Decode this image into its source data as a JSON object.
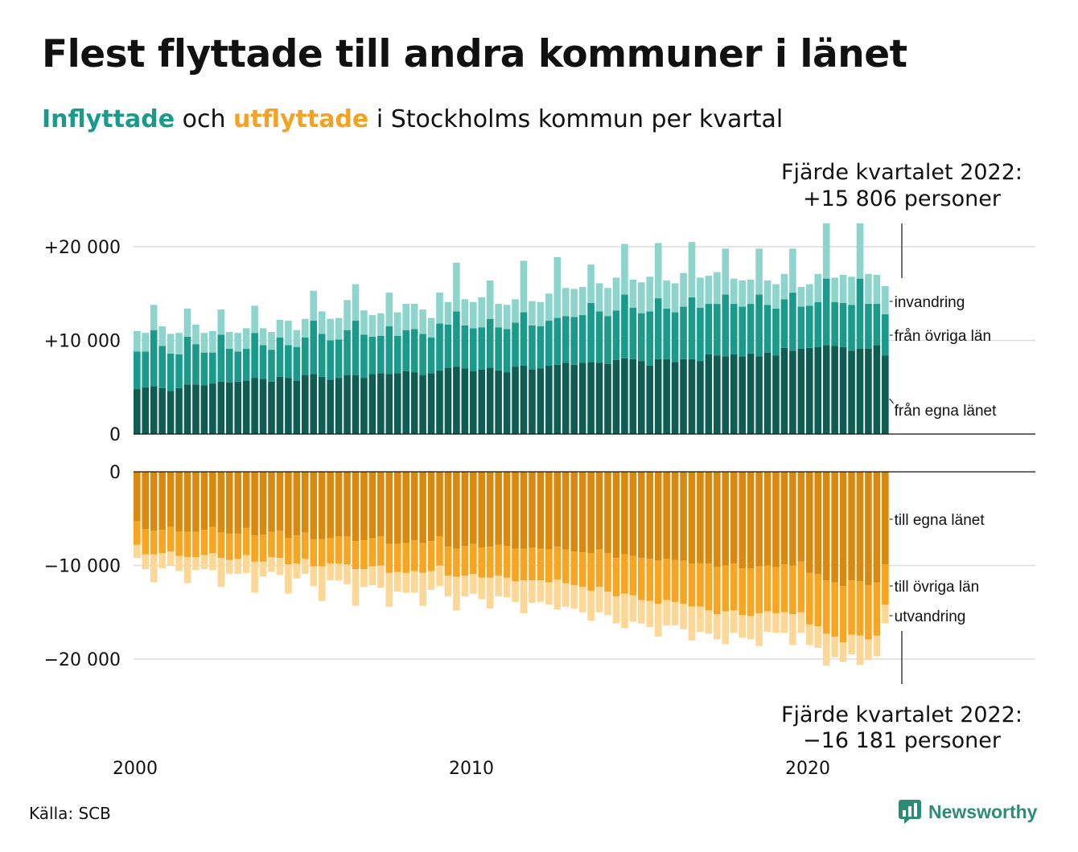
{
  "header": {
    "title": "Flest flyttade till andra kommuner i länet",
    "subtitle_in": "Inflyttade",
    "subtitle_and": "och",
    "subtitle_out": "utflyttade",
    "subtitle_rest": "i Stockholms kommun per kvartal"
  },
  "footer": {
    "source": "Källa: SCB",
    "logo": "Newsworthy"
  },
  "colors": {
    "in_own": "#0e5c52",
    "in_other": "#1a9a8a",
    "in_abroad": "#8dd5cc",
    "out_own": "#d98a0e",
    "out_other": "#f8a521",
    "out_abroad": "#fdd795"
  },
  "chart_data": {
    "type": "bar",
    "stacked": true,
    "grid": true,
    "x_ticks": [
      "2000",
      "2010",
      "2020"
    ],
    "y_ticks_in": [
      "+20 000",
      "+10 000",
      "0"
    ],
    "y_ticks_out": [
      "0",
      "−10 000",
      "−20 000"
    ],
    "ylim_in": [
      0,
      20000
    ],
    "ylim_out": [
      -20000,
      0
    ],
    "annotation_top": [
      "Fjärde kvartalet 2022:",
      "+15 806 personer"
    ],
    "annotation_bottom": [
      "Fjärde kvartalet 2022:",
      "−16 181 personer"
    ],
    "series_in": [
      {
        "name": "från egna länet",
        "values": [
          4800,
          5000,
          5100,
          4900,
          4600,
          4900,
          5300,
          5300,
          5200,
          5400,
          5600,
          5500,
          5600,
          5700,
          6000,
          5900,
          5600,
          6100,
          6000,
          5700,
          6300,
          6400,
          6100,
          5800,
          6000,
          6300,
          6300,
          6000,
          6400,
          6500,
          6400,
          6500,
          6700,
          6600,
          6300,
          6500,
          6800,
          7100,
          7200,
          7000,
          6700,
          6900,
          7100,
          6800,
          6600,
          7200,
          7300,
          6900,
          7000,
          7300,
          7400,
          7600,
          7400,
          7600,
          7700,
          7600,
          7500,
          7900,
          8100,
          8000,
          7800,
          7300,
          8000,
          8000,
          7700,
          8000,
          8000,
          7800,
          8500,
          8400,
          8300,
          8500,
          8300,
          8600,
          8300,
          8700,
          8400,
          9200,
          8900,
          9100,
          9200,
          9300,
          9500,
          9400,
          9300,
          8900,
          9100,
          9100,
          9500,
          8400
        ]
      },
      {
        "name": "från övriga län",
        "values": [
          4000,
          3800,
          6000,
          4500,
          4000,
          3600,
          5100,
          4300,
          3500,
          3300,
          5000,
          3600,
          3200,
          3400,
          4800,
          3600,
          3400,
          4200,
          3500,
          3600,
          4000,
          5700,
          4600,
          4200,
          4100,
          4800,
          5800,
          4600,
          4000,
          4000,
          5100,
          4000,
          4400,
          4600,
          4400,
          3800,
          5000,
          4600,
          5900,
          4600,
          4600,
          4500,
          5200,
          4600,
          4600,
          4700,
          5700,
          4700,
          4500,
          4800,
          5000,
          5000,
          5100,
          5100,
          6300,
          5500,
          5100,
          5300,
          6800,
          5500,
          5100,
          5800,
          6500,
          5400,
          5300,
          5600,
          6600,
          5700,
          5400,
          5500,
          6600,
          5400,
          5300,
          5300,
          6600,
          5100,
          5000,
          5200,
          6200,
          4500,
          4500,
          4800,
          7100,
          4700,
          4700,
          4900,
          7500,
          4800,
          4400,
          4400
        ]
      },
      {
        "name": "invandring",
        "values": [
          2200,
          2000,
          2700,
          2100,
          2100,
          2300,
          3000,
          2100,
          2100,
          2300,
          2700,
          1800,
          2000,
          2200,
          2900,
          1800,
          1900,
          1900,
          2600,
          1800,
          2000,
          3200,
          2400,
          2300,
          2300,
          3200,
          3900,
          2600,
          2300,
          2400,
          3600,
          2500,
          2800,
          2700,
          2600,
          2100,
          3300,
          2400,
          5200,
          2800,
          2800,
          3200,
          4100,
          2500,
          2600,
          2500,
          5500,
          2600,
          2600,
          2900,
          6500,
          3000,
          3000,
          3000,
          4100,
          3000,
          3000,
          3500,
          5400,
          3000,
          3300,
          3700,
          5900,
          3000,
          3100,
          3600,
          5900,
          3200,
          3000,
          3400,
          4900,
          2700,
          2800,
          2600,
          4900,
          2600,
          2600,
          2700,
          4700,
          2100,
          2300,
          3000,
          5900,
          2600,
          3000,
          3000,
          5900,
          3200,
          3100,
          3000
        ]
      }
    ],
    "series_out": [
      {
        "name": "till egna länet",
        "values": [
          -5300,
          -6100,
          -6300,
          -6200,
          -5900,
          -6400,
          -6400,
          -6400,
          -6200,
          -5900,
          -6500,
          -6600,
          -6600,
          -6000,
          -6800,
          -6700,
          -6400,
          -6300,
          -7100,
          -6800,
          -6500,
          -7200,
          -7200,
          -7100,
          -6900,
          -6900,
          -7400,
          -7300,
          -7100,
          -6900,
          -7700,
          -7700,
          -7600,
          -7300,
          -7600,
          -7400,
          -6900,
          -8000,
          -8200,
          -7900,
          -7700,
          -8100,
          -8000,
          -7800,
          -7900,
          -8200,
          -8200,
          -8100,
          -8200,
          -8300,
          -8000,
          -8300,
          -8500,
          -8600,
          -8700,
          -8300,
          -8700,
          -9200,
          -8800,
          -9000,
          -9200,
          -9300,
          -9500,
          -9300,
          -9400,
          -9500,
          -9800,
          -9800,
          -9800,
          -10200,
          -10000,
          -9800,
          -10300,
          -10300,
          -10100,
          -10000,
          -10200,
          -9900,
          -10000,
          -9600,
          -10800,
          -10900,
          -11600,
          -11800,
          -12200,
          -11600,
          -11700,
          -12100,
          -11800,
          -9900
        ]
      },
      {
        "name": "till övriga län",
        "values": [
          -2500,
          -2700,
          -2500,
          -2500,
          -2600,
          -2600,
          -2700,
          -2700,
          -2700,
          -2800,
          -2700,
          -2800,
          -2700,
          -2900,
          -2800,
          -2900,
          -2700,
          -2900,
          -2800,
          -3000,
          -2800,
          -2900,
          -2900,
          -2700,
          -2900,
          -3000,
          -3000,
          -3100,
          -3000,
          -3100,
          -3100,
          -3000,
          -3200,
          -3300,
          -3200,
          -3200,
          -3100,
          -3100,
          -3000,
          -3200,
          -3200,
          -3200,
          -3300,
          -3300,
          -3400,
          -3500,
          -3400,
          -3500,
          -3400,
          -3500,
          -3500,
          -3600,
          -3600,
          -3700,
          -4000,
          -4000,
          -4100,
          -4100,
          -4200,
          -4200,
          -4500,
          -4500,
          -4600,
          -4400,
          -4500,
          -4600,
          -4600,
          -4600,
          -5000,
          -5000,
          -4900,
          -5000,
          -5000,
          -5100,
          -5000,
          -4900,
          -4900,
          -5100,
          -5200,
          -5400,
          -5500,
          -5600,
          -5700,
          -5800,
          -6000,
          -5800,
          -5800,
          -5800,
          -5700,
          -4300
        ]
      },
      {
        "name": "utvandring",
        "values": [
          -1400,
          -1600,
          -3000,
          -1600,
          -1500,
          -1600,
          -2800,
          -1400,
          -1500,
          -1800,
          -3100,
          -1500,
          -1600,
          -1900,
          -3300,
          -1600,
          -1600,
          -1800,
          -3100,
          -1600,
          -1600,
          -2100,
          -3700,
          -1800,
          -1800,
          -2100,
          -3900,
          -1900,
          -2000,
          -2400,
          -3600,
          -2100,
          -2100,
          -2300,
          -3500,
          -2000,
          -2200,
          -2200,
          -3600,
          -2200,
          -2100,
          -2300,
          -3300,
          -2200,
          -2100,
          -2200,
          -3500,
          -2400,
          -2300,
          -2400,
          -3200,
          -2500,
          -2500,
          -2700,
          -3200,
          -2700,
          -2500,
          -2900,
          -3700,
          -2800,
          -2500,
          -2800,
          -3500,
          -2700,
          -2500,
          -2700,
          -3600,
          -2700,
          -2500,
          -2700,
          -3500,
          -2400,
          -2400,
          -2500,
          -3500,
          -2200,
          -2100,
          -2200,
          -3300,
          -2200,
          -2200,
          -2300,
          -3400,
          -2200,
          -2100,
          -2100,
          -3100,
          -2200,
          -2200,
          -1981
        ]
      }
    ]
  }
}
